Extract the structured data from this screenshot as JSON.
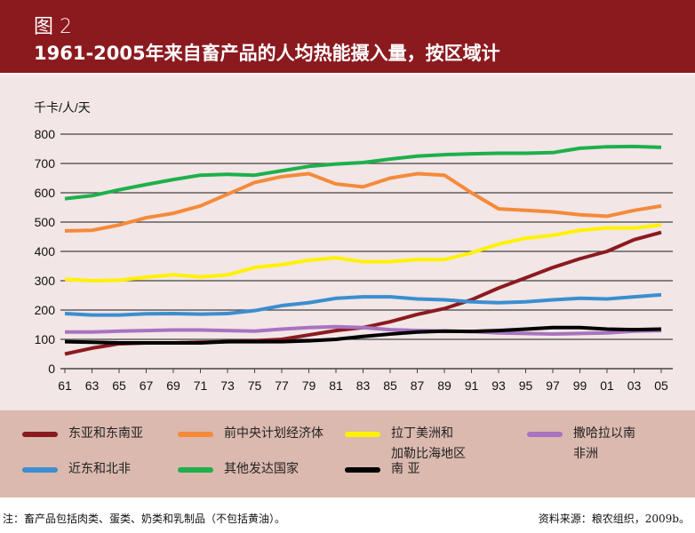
{
  "header": {
    "figure": "图 2",
    "title": "1961-2005年来自畜产品的人均热能摄入量，按区域计"
  },
  "chart_data": {
    "type": "line",
    "title": "1961-2005年来自畜产品的人均热能摄入量，按区域计",
    "ylabel": "千卡/人/天",
    "xlabel": "",
    "ylim": [
      0,
      800
    ],
    "yticks": [
      0,
      100,
      200,
      300,
      400,
      500,
      600,
      700,
      800
    ],
    "xlim": [
      1961,
      2005
    ],
    "xticklabels": [
      "61",
      "63",
      "65",
      "67",
      "69",
      "71",
      "73",
      "75",
      "77",
      "79",
      "81",
      "83",
      "85",
      "87",
      "89",
      "91",
      "93",
      "95",
      "97",
      "99",
      "01",
      "03",
      "05"
    ],
    "x": [
      1961,
      1963,
      1965,
      1967,
      1969,
      1971,
      1973,
      1975,
      1977,
      1979,
      1981,
      1983,
      1985,
      1987,
      1989,
      1991,
      1993,
      1995,
      1997,
      1999,
      2001,
      2003,
      2005
    ],
    "grid": "horizontal",
    "series": [
      {
        "name": "东亚和东南亚",
        "color": "#8B1A1F",
        "values": [
          50,
          70,
          85,
          88,
          88,
          90,
          92,
          95,
          100,
          115,
          130,
          140,
          160,
          185,
          205,
          235,
          275,
          310,
          345,
          375,
          400,
          440,
          465
        ]
      },
      {
        "name": "前中央计划经济体",
        "color": "#F58A3A",
        "values": [
          470,
          472,
          490,
          515,
          530,
          555,
          595,
          635,
          655,
          665,
          630,
          620,
          650,
          665,
          660,
          600,
          545,
          540,
          535,
          525,
          520,
          540,
          555
        ]
      },
      {
        "name": "拉丁美洲和加勒比海地区",
        "color": "#FFF200",
        "values": [
          305,
          300,
          302,
          312,
          320,
          313,
          320,
          345,
          355,
          370,
          378,
          365,
          365,
          372,
          372,
          395,
          425,
          445,
          455,
          472,
          480,
          480,
          490
        ]
      },
      {
        "name": "撒哈拉以南非洲",
        "color": "#A873C0",
        "values": [
          125,
          125,
          128,
          130,
          132,
          132,
          130,
          128,
          135,
          140,
          143,
          140,
          133,
          130,
          128,
          127,
          122,
          120,
          118,
          120,
          122,
          128,
          130
        ]
      },
      {
        "name": "近东和北非",
        "color": "#3B8ED0",
        "values": [
          188,
          183,
          183,
          187,
          188,
          186,
          188,
          198,
          215,
          225,
          240,
          245,
          245,
          238,
          235,
          228,
          225,
          228,
          235,
          240,
          238,
          245,
          252
        ]
      },
      {
        "name": "其他发达国家",
        "color": "#1DB04B",
        "values": [
          580,
          590,
          610,
          628,
          645,
          660,
          663,
          660,
          675,
          690,
          698,
          703,
          715,
          725,
          730,
          733,
          735,
          735,
          737,
          752,
          757,
          758,
          755
        ]
      },
      {
        "name": "南 亚",
        "color": "#000000",
        "values": [
          92,
          90,
          88,
          88,
          88,
          88,
          92,
          92,
          92,
          95,
          100,
          110,
          118,
          125,
          128,
          127,
          130,
          135,
          140,
          140,
          135,
          133,
          135
        ]
      }
    ]
  },
  "legend": [
    {
      "label1": "东亚和东南亚",
      "label2": ""
    },
    {
      "label1": "前中央计划经济体",
      "label2": ""
    },
    {
      "label1": "拉丁美洲和",
      "label2": "加勒比海地区"
    },
    {
      "label1": "撒哈拉以南",
      "label2": "非洲"
    },
    {
      "label1": "近东和北非",
      "label2": ""
    },
    {
      "label1": "其他发达国家",
      "label2": ""
    },
    {
      "label1": "南 亚",
      "label2": ""
    }
  ],
  "footer": {
    "note": "注：畜产品包括肉类、蛋类、奶类和乳制品（不包括黄油）。",
    "source": "资料来源：粮农组织，2009b。"
  }
}
